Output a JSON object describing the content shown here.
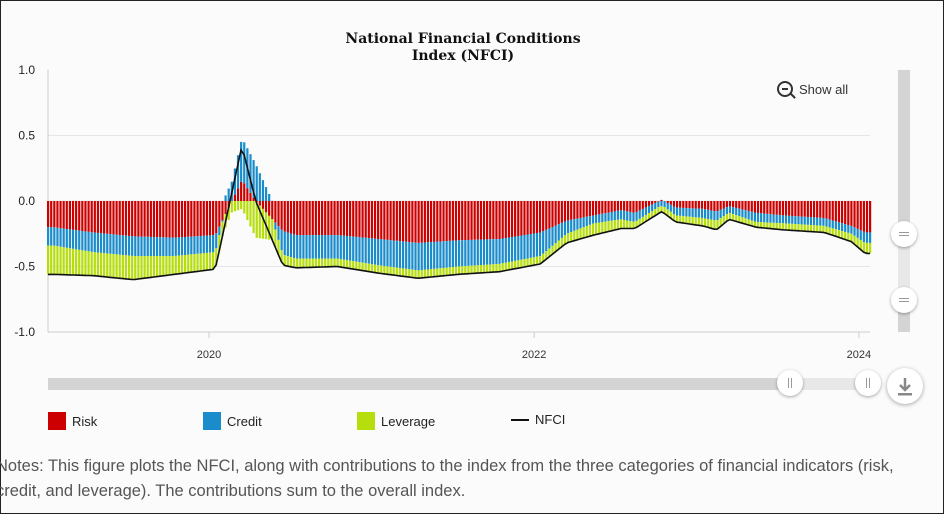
{
  "title_line1": "National Financial Conditions",
  "title_line2": "Index (NFCI)",
  "show_all_label": "Show all",
  "notes": "Notes: This figure plots the NFCI, along with contributions to the index from the three categories of financial indicators (risk, credit, and leverage). The contributions sum to the overall index.",
  "legend": [
    {
      "label": "Risk",
      "color": "#cc0000"
    },
    {
      "label": "Credit",
      "color": "#1a8ccc"
    },
    {
      "label": "Leverage",
      "color": "#b6de0c"
    },
    {
      "label": "NFCI",
      "color": "#111111"
    }
  ],
  "icons": {
    "zoom_out": "zoom-out-icon",
    "download": "download-icon"
  },
  "chart_data": {
    "type": "area",
    "title": "National Financial Conditions Index (NFCI)",
    "stacked_bars": true,
    "x_label": "",
    "y_label": "",
    "x_range": [
      "2019-01-04",
      "2024-01-26"
    ],
    "ylim": [
      -1.0,
      1.0
    ],
    "y_ticks": [
      "1.0",
      "0.5",
      "0.0",
      "-0.5",
      "-1.0"
    ],
    "x_ticks": [
      "2020",
      "2022",
      "2024"
    ],
    "grid": true,
    "legend_position": "bottom",
    "colors": {
      "risk": "#cc0000",
      "credit": "#1a8ccc",
      "leverage": "#b6de0c",
      "nfci": "#111111",
      "axis": "#cccccc",
      "grid": "#e6e6e6"
    },
    "dates": [
      "2019-01",
      "2019-04",
      "2019-07",
      "2019-10",
      "2020-01",
      "2020-03",
      "2020-04",
      "2020-06",
      "2020-07",
      "2020-10",
      "2021-01",
      "2021-04",
      "2021-07",
      "2021-10",
      "2022-01",
      "2022-03",
      "2022-05",
      "2022-07",
      "2022-08",
      "2022-10",
      "2022-11",
      "2023-01",
      "2023-02",
      "2023-03",
      "2023-05",
      "2023-07",
      "2023-10",
      "2023-12",
      "2024-01"
    ],
    "series": [
      {
        "name": "Risk",
        "values": [
          -0.2,
          -0.24,
          -0.27,
          -0.28,
          -0.26,
          0.16,
          0.0,
          -0.23,
          -0.26,
          -0.26,
          -0.29,
          -0.32,
          -0.3,
          -0.29,
          -0.24,
          -0.15,
          -0.11,
          -0.07,
          -0.09,
          0.01,
          -0.05,
          -0.06,
          -0.08,
          -0.04,
          -0.09,
          -0.11,
          -0.13,
          -0.19,
          -0.24
        ]
      },
      {
        "name": "Credit",
        "values": [
          -0.14,
          -0.15,
          -0.15,
          -0.14,
          -0.13,
          0.32,
          0.28,
          -0.18,
          -0.18,
          -0.18,
          -0.2,
          -0.21,
          -0.2,
          -0.19,
          -0.18,
          -0.1,
          -0.06,
          -0.07,
          -0.07,
          -0.04,
          -0.06,
          -0.07,
          -0.07,
          -0.05,
          -0.07,
          -0.06,
          -0.06,
          -0.06,
          -0.08
        ]
      },
      {
        "name": "Leverage",
        "values": [
          -0.22,
          -0.18,
          -0.18,
          -0.14,
          -0.13,
          -0.06,
          -0.28,
          -0.08,
          -0.07,
          -0.06,
          -0.06,
          -0.06,
          -0.06,
          -0.06,
          -0.06,
          -0.07,
          -0.09,
          -0.07,
          -0.05,
          -0.05,
          -0.05,
          -0.06,
          -0.07,
          -0.05,
          -0.04,
          -0.05,
          -0.05,
          -0.06,
          -0.08
        ]
      },
      {
        "name": "NFCI",
        "values": [
          -0.56,
          -0.57,
          -0.6,
          -0.56,
          -0.52,
          0.42,
          0.0,
          -0.49,
          -0.51,
          -0.5,
          -0.55,
          -0.59,
          -0.56,
          -0.54,
          -0.48,
          -0.32,
          -0.26,
          -0.21,
          -0.21,
          -0.08,
          -0.16,
          -0.19,
          -0.22,
          -0.14,
          -0.2,
          -0.22,
          -0.24,
          -0.31,
          -0.4
        ]
      }
    ]
  }
}
